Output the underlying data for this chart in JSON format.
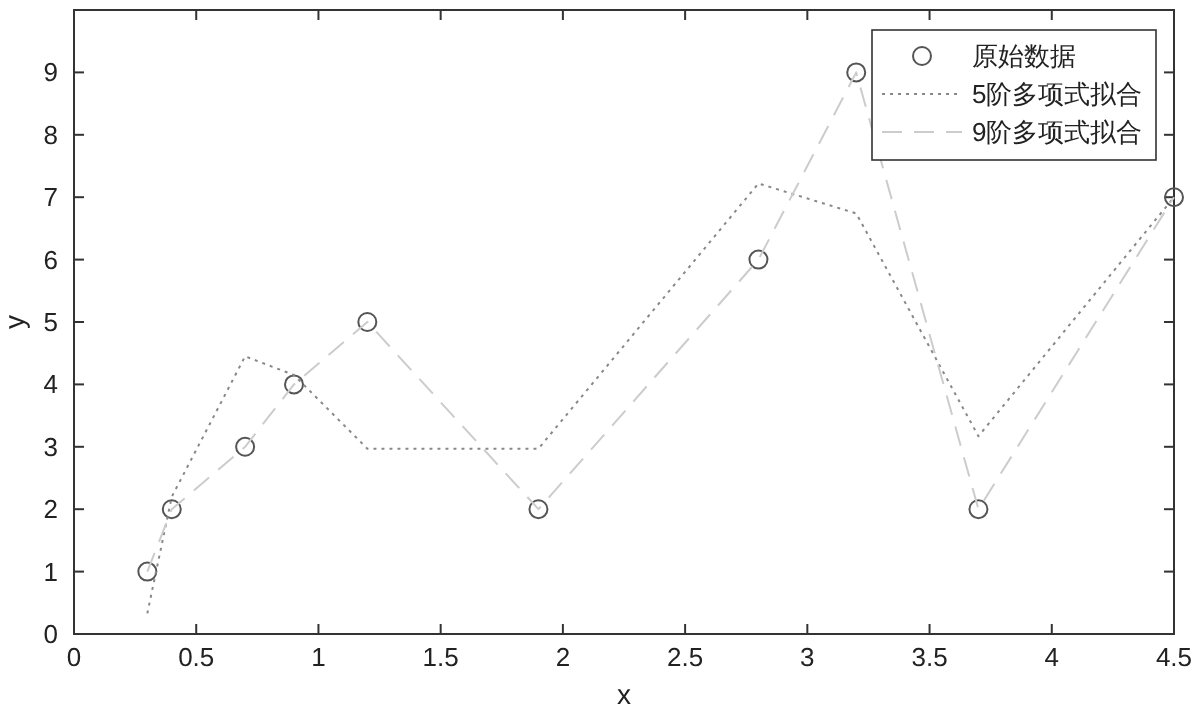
{
  "chart_data": {
    "type": "line",
    "xlabel": "x",
    "ylabel": "y",
    "xlim": [
      0,
      4.5
    ],
    "ylim": [
      0,
      10
    ],
    "xticks": [
      0,
      0.5,
      1,
      1.5,
      2,
      2.5,
      3,
      3.5,
      4,
      4.5
    ],
    "yticks": [
      0,
      1,
      2,
      3,
      4,
      5,
      6,
      7,
      8,
      9,
      {
        "value": 10,
        "label": null
      }
    ],
    "grid": false,
    "legend": "top right",
    "series": [
      {
        "name": "原始数据",
        "type": "scatter",
        "marker": "circle",
        "color": "#555555",
        "x": [
          0.3,
          0.4,
          0.7,
          0.9,
          1.2,
          1.9,
          2.8,
          3.2,
          3.7,
          4.5
        ],
        "values": [
          1,
          2,
          3,
          4,
          5,
          2,
          6,
          9,
          2,
          7
        ]
      },
      {
        "name": "5阶多项式拟合",
        "type": "line",
        "line_style": "dotted",
        "marker": "none",
        "color": "#888888",
        "x": [
          0.3,
          0.4,
          0.7,
          0.9,
          1.2,
          1.9,
          2.8,
          3.2,
          3.7,
          4.5
        ],
        "values": [
          0.33,
          2.2,
          4.45,
          4.15,
          2.97,
          2.97,
          7.22,
          6.74,
          3.17,
          7
        ]
      },
      {
        "name": "9阶多项式拟合",
        "type": "line",
        "line_style": "dashed",
        "marker": "none",
        "color": "#cccccc",
        "x": [
          0.3,
          0.4,
          0.7,
          0.9,
          1.2,
          1.9,
          2.8,
          3.2,
          3.7,
          4.5
        ],
        "values": [
          1,
          2,
          3,
          4,
          5,
          2,
          6,
          9,
          2,
          7
        ]
      }
    ]
  }
}
